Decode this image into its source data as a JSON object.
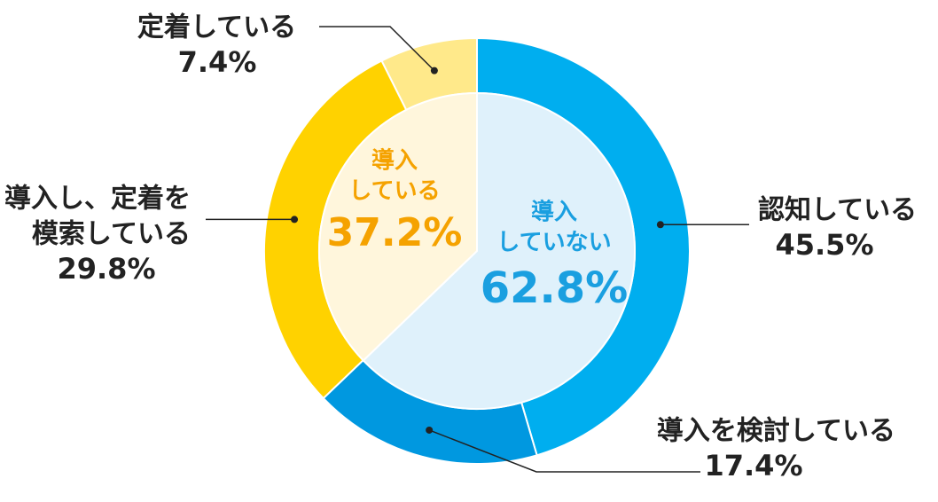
{
  "chart_data": {
    "type": "donut",
    "rings": [
      {
        "categories": [
          [
            "認知している"
          ],
          [
            "導入を検討している"
          ],
          [
            "導入し、定着を",
            "模索している"
          ],
          [
            "定着している"
          ]
        ],
        "values": [
          45.5,
          17.4,
          29.8,
          7.4
        ],
        "value_labels": [
          "45.5%",
          "17.4%",
          "29.8%",
          "7.4%"
        ],
        "colors": [
          "#00aeef",
          "#0098e0",
          "#ffd200",
          "#ffe98a"
        ]
      },
      {
        "categories": [
          [
            "導入",
            "していない"
          ],
          [
            "導入",
            "している"
          ]
        ],
        "values": [
          62.8,
          37.2
        ],
        "value_labels": [
          "62.8%",
          "37.2%"
        ],
        "colors": [
          "#dff1fb",
          "#fff6dc"
        ],
        "text_colors": [
          "#1a9fe0",
          "#f5a200"
        ]
      }
    ]
  }
}
